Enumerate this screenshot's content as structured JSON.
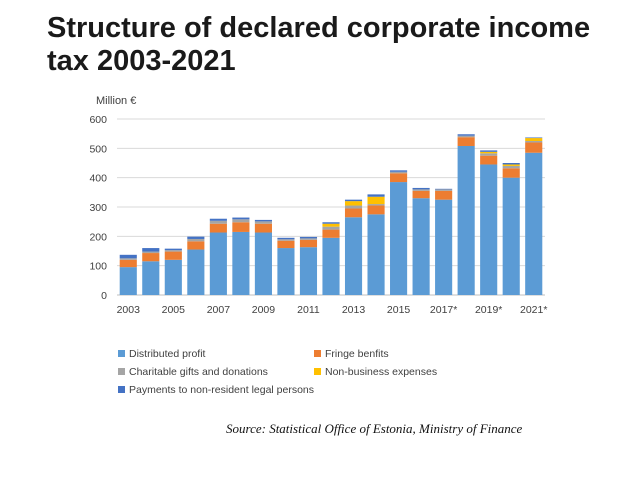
{
  "title": "Structure of declared corporate income tax 2003-2021",
  "source": "Source: Statistical Office of Estonia, Ministry of Finance",
  "chart_data": {
    "type": "bar",
    "stacked": true,
    "ylabel": "Million €",
    "ylim": [
      0,
      600
    ],
    "yticks": [
      0,
      100,
      200,
      300,
      400,
      500,
      600
    ],
    "grid": true,
    "legend_position": "bottom",
    "categories": [
      "2003",
      "2004",
      "2005",
      "2006",
      "2007",
      "2008",
      "2009",
      "2010",
      "2011",
      "2012",
      "2013",
      "2014",
      "2015",
      "2016",
      "2017*",
      "2018*",
      "2019*",
      "2020*",
      "2021*"
    ],
    "x_tick_labels": [
      "2003",
      "2005",
      "2007",
      "2009",
      "2011",
      "2013",
      "2015",
      "2017*",
      "2019*",
      "2021*"
    ],
    "series": [
      {
        "name": "Distributed profit",
        "color": "#5b9bd5",
        "values": [
          95,
          115,
          120,
          155,
          213,
          215,
          213,
          160,
          163,
          195,
          265,
          275,
          385,
          330,
          325,
          508,
          445,
          400,
          485
        ]
      },
      {
        "name": "Fringe benfits",
        "color": "#ed7d31",
        "values": [
          25,
          28,
          28,
          28,
          30,
          33,
          30,
          25,
          25,
          28,
          30,
          30,
          30,
          25,
          30,
          30,
          30,
          32,
          35
        ]
      },
      {
        "name": "Charitable gifts and donations",
        "color": "#a5a5a5",
        "values": [
          5,
          5,
          5,
          8,
          10,
          10,
          8,
          5,
          5,
          10,
          10,
          5,
          5,
          5,
          5,
          5,
          8,
          8,
          5
        ]
      },
      {
        "name": "Non-business expenses",
        "color": "#ffc000",
        "values": [
          0,
          0,
          0,
          0,
          0,
          0,
          0,
          0,
          0,
          10,
          15,
          25,
          0,
          0,
          0,
          0,
          5,
          5,
          10
        ]
      },
      {
        "name": "Payments to non-resident legal persons",
        "color": "#4472c4",
        "values": [
          12,
          12,
          5,
          8,
          7,
          6,
          5,
          5,
          5,
          5,
          5,
          8,
          5,
          5,
          2,
          5,
          5,
          5,
          2
        ]
      }
    ]
  }
}
